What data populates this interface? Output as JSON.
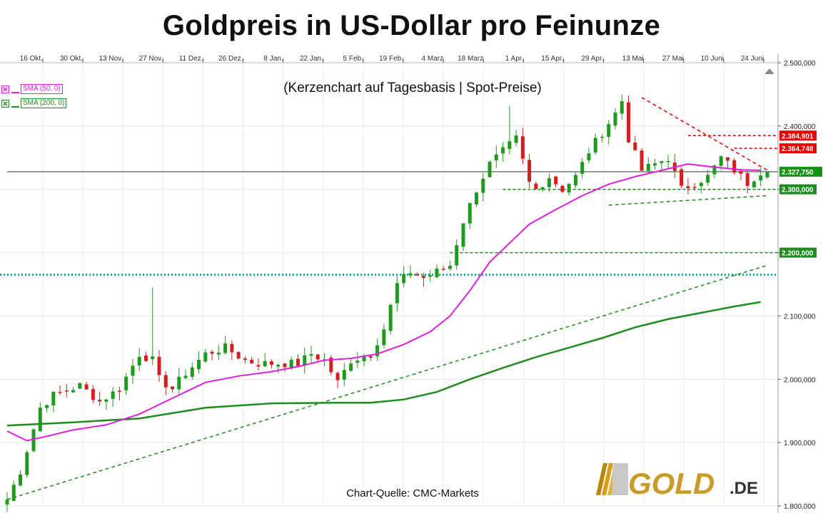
{
  "chart_data": {
    "type": "candlestick",
    "title": "Goldpreis in US-Dollar pro Feinunze",
    "subtitle": "(Kerzenchart auf Tagesbasis | Spot-Preise)",
    "source": "Chart-Quelle: CMC-Markets",
    "logo_text": "GOLD.DE",
    "grid": true,
    "x_ticks": [
      "16 Okt.",
      "30 Okt.",
      "13 Nov.",
      "27 Nov.",
      "11 Dez.",
      "26 Dez.",
      "8 Jan.",
      "22 Jan.",
      "5 Feb.",
      "19 Feb.",
      "4 Marz",
      "18 Marz",
      "1 Apr.",
      "15 Apr.",
      "29 Apr.",
      "13 Mai",
      "27 Mai",
      "10 Juni",
      "24 Juni"
    ],
    "y_ticks": [
      "1.800,000",
      "1.900,000",
      "2.000,000",
      "2.100,000",
      "2.200,000",
      "2.300,000",
      "2.400,000",
      "2.500,000"
    ],
    "ylim": [
      1800,
      2500
    ],
    "price_anchors": [
      [
        0,
        1810
      ],
      [
        2,
        1855
      ],
      [
        5,
        1955
      ],
      [
        7,
        1975
      ],
      [
        9,
        1982
      ],
      [
        11,
        1990
      ],
      [
        14,
        1965
      ],
      [
        17,
        1985
      ],
      [
        20,
        2040
      ],
      [
        22,
        2030
      ],
      [
        23,
        2000
      ],
      [
        25,
        1985
      ],
      [
        27,
        2010
      ],
      [
        30,
        2040
      ],
      [
        33,
        2050
      ],
      [
        36,
        2030
      ],
      [
        38,
        2025
      ],
      [
        41,
        2025
      ],
      [
        44,
        2025
      ],
      [
        46,
        2040
      ],
      [
        48,
        2030
      ],
      [
        50,
        1995
      ],
      [
        52,
        2030
      ],
      [
        55,
        2040
      ],
      [
        57,
        2080
      ],
      [
        59,
        2150
      ],
      [
        61,
        2170
      ],
      [
        63,
        2160
      ],
      [
        65,
        2170
      ],
      [
        67,
        2180
      ],
      [
        69,
        2250
      ],
      [
        71,
        2300
      ],
      [
        73,
        2340
      ],
      [
        75,
        2360
      ],
      [
        77,
        2380
      ],
      [
        79,
        2310
      ],
      [
        80,
        2300
      ],
      [
        82,
        2320
      ],
      [
        84,
        2300
      ],
      [
        86,
        2320
      ],
      [
        88,
        2360
      ],
      [
        90,
        2390
      ],
      [
        92,
        2420
      ],
      [
        93,
        2440
      ],
      [
        94,
        2380
      ],
      [
        96,
        2330
      ],
      [
        98,
        2340
      ],
      [
        100,
        2350
      ],
      [
        102,
        2300
      ],
      [
        104,
        2310
      ],
      [
        106,
        2320
      ],
      [
        108,
        2350
      ],
      [
        110,
        2330
      ],
      [
        112,
        2310
      ],
      [
        114,
        2327.75
      ]
    ],
    "sma50": {
      "name": "SMA (50, 0)",
      "color": "#e01ee0",
      "values": [
        [
          0,
          1918
        ],
        [
          3,
          1903
        ],
        [
          6,
          1910
        ],
        [
          10,
          1920
        ],
        [
          15,
          1928
        ],
        [
          20,
          1945
        ],
        [
          25,
          1970
        ],
        [
          30,
          1995
        ],
        [
          35,
          2005
        ],
        [
          40,
          2012
        ],
        [
          44,
          2020
        ],
        [
          48,
          2030
        ],
        [
          52,
          2033
        ],
        [
          56,
          2040
        ],
        [
          60,
          2055
        ],
        [
          64,
          2075
        ],
        [
          67,
          2100
        ],
        [
          70,
          2140
        ],
        [
          73,
          2185
        ],
        [
          76,
          2215
        ],
        [
          79,
          2245
        ],
        [
          83,
          2268
        ],
        [
          87,
          2290
        ],
        [
          91,
          2308
        ],
        [
          95,
          2320
        ],
        [
          99,
          2330
        ],
        [
          103,
          2340
        ],
        [
          107,
          2335
        ],
        [
          111,
          2331
        ],
        [
          114,
          2330
        ]
      ]
    },
    "sma200": {
      "name": "SMA (200, 0)",
      "color": "#1e8c1e",
      "values": [
        [
          0,
          1927
        ],
        [
          10,
          1932
        ],
        [
          20,
          1938
        ],
        [
          30,
          1955
        ],
        [
          40,
          1962
        ],
        [
          50,
          1963
        ],
        [
          55,
          1963
        ],
        [
          60,
          1968
        ],
        [
          65,
          1980
        ],
        [
          70,
          2000
        ],
        [
          75,
          2018
        ],
        [
          80,
          2035
        ],
        [
          85,
          2050
        ],
        [
          90,
          2065
        ],
        [
          95,
          2082
        ],
        [
          100,
          2095
        ],
        [
          105,
          2105
        ],
        [
          110,
          2115
        ],
        [
          114,
          2122
        ]
      ]
    },
    "horizontal_lines": [
      {
        "label": "2.384,901",
        "value": 2384.901,
        "color": "#e60000",
        "style": "dashed",
        "from": 103,
        "box_color": "#e60000"
      },
      {
        "label": "2.364,748",
        "value": 2364.748,
        "color": "#e60000",
        "style": "dashed",
        "from": 110,
        "box_color": "#e60000"
      },
      {
        "label": "2.327,750",
        "value": 2327.75,
        "color": "#333333",
        "style": "solid",
        "from": 0,
        "box_color": "#149414"
      },
      {
        "label": "2.300,000",
        "value": 2300,
        "color": "#1e8c1e",
        "style": "dashed",
        "from": 75,
        "box_color": "#1e8c1e"
      },
      {
        "label": "2.200,000",
        "value": 2200,
        "color": "#1e8c1e",
        "style": "dashed",
        "from": 67,
        "box_color": "#1e8c1e"
      },
      {
        "label": "",
        "value": 2165,
        "color": "#17a38b",
        "style": "dotted",
        "from": 0,
        "box_color": ""
      }
    ],
    "trend_lines": [
      {
        "color": "#1e8c1e",
        "style": "dashed",
        "points": [
          [
            0,
            1810
          ],
          [
            115,
            2180
          ]
        ]
      },
      {
        "color": "#1e8c1e",
        "style": "dashed",
        "points": [
          [
            91,
            2275
          ],
          [
            115,
            2290
          ]
        ]
      },
      {
        "color": "#e60000",
        "style": "dashed",
        "points": [
          [
            96,
            2445
          ],
          [
            115,
            2330
          ]
        ]
      }
    ],
    "legend": {
      "placement": "top-left"
    }
  }
}
